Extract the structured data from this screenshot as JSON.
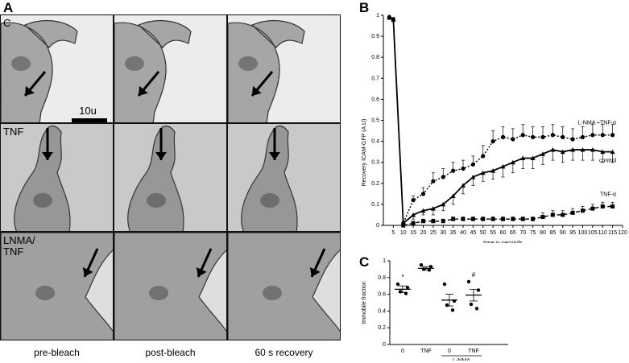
{
  "panels": {
    "a": "A",
    "b": "B",
    "c": "C"
  },
  "micrographs": {
    "rows": [
      "C",
      "TNF",
      "LNMA/\nTNF"
    ],
    "columns": [
      "pre-bleach",
      "post-bleach",
      "60 s recovery"
    ],
    "scale_bar": "10u",
    "colors": {
      "row1_bg": "#ececec",
      "row2_bg": "#c9c9c9",
      "row3_bg": "#dedede",
      "cell_stain": "#6e6e6e"
    },
    "icons": [
      "arrow-icon"
    ]
  },
  "chart_data": [
    {
      "type": "line",
      "xlabel": "time in seconds",
      "ylabel": "Recovery ICAM-GFP (A.U)",
      "x": [
        5,
        10,
        15,
        20,
        25,
        30,
        35,
        40,
        45,
        50,
        55,
        60,
        65,
        70,
        75,
        80,
        85,
        90,
        95,
        100,
        105,
        110,
        115,
        120
      ],
      "xlim": [
        0,
        120
      ],
      "ylim": [
        0,
        1
      ],
      "yticks": [
        "0",
        "0.1",
        "0.2",
        "0.3",
        "0.4",
        "0.5",
        "0.6",
        "0.7",
        "0.8",
        "0.9",
        "1"
      ],
      "grid": false,
      "series": [
        {
          "name": "L-NMA +TNF-α",
          "marker": "circle",
          "style": "dotted",
          "x": [
            3,
            5,
            10,
            15,
            20,
            25,
            30,
            35,
            40,
            45,
            50,
            55,
            60,
            65,
            70,
            75,
            80,
            85,
            90,
            95,
            100,
            105,
            110,
            115
          ],
          "values": [
            0.99,
            0.98,
            0.01,
            0.12,
            0.15,
            0.21,
            0.23,
            0.26,
            0.27,
            0.29,
            0.33,
            0.4,
            0.42,
            0.41,
            0.43,
            0.42,
            0.42,
            0.43,
            0.42,
            0.41,
            0.42,
            0.43,
            0.43,
            0.43
          ],
          "error": [
            0.01,
            0.01,
            0.01,
            0.02,
            0.03,
            0.04,
            0.04,
            0.04,
            0.04,
            0.04,
            0.05,
            0.05,
            0.05,
            0.05,
            0.05,
            0.05,
            0.05,
            0.05,
            0.05,
            0.05,
            0.05,
            0.05,
            0.05,
            0.05
          ]
        },
        {
          "name": "control",
          "marker": "triangle",
          "style": "solid",
          "x": [
            3,
            5,
            10,
            15,
            20,
            25,
            30,
            35,
            40,
            45,
            50,
            55,
            60,
            65,
            70,
            75,
            80,
            85,
            90,
            95,
            100,
            105,
            110,
            115
          ],
          "values": [
            0.99,
            0.98,
            0.01,
            0.05,
            0.07,
            0.08,
            0.1,
            0.14,
            0.19,
            0.23,
            0.25,
            0.26,
            0.28,
            0.3,
            0.32,
            0.32,
            0.34,
            0.36,
            0.35,
            0.36,
            0.36,
            0.36,
            0.35,
            0.35
          ],
          "error": [
            0.01,
            0.01,
            0.01,
            0.02,
            0.02,
            0.03,
            0.03,
            0.04,
            0.04,
            0.04,
            0.04,
            0.04,
            0.05,
            0.05,
            0.05,
            0.05,
            0.05,
            0.05,
            0.05,
            0.05,
            0.05,
            0.05,
            0.05,
            0.05
          ]
        },
        {
          "name": "TNF-α",
          "marker": "square",
          "style": "dashed",
          "x": [
            10,
            15,
            20,
            25,
            30,
            35,
            40,
            45,
            50,
            55,
            60,
            65,
            70,
            75,
            80,
            85,
            90,
            95,
            100,
            105,
            110,
            115
          ],
          "values": [
            0.0,
            0.01,
            0.02,
            0.02,
            0.02,
            0.03,
            0.03,
            0.03,
            0.03,
            0.03,
            0.03,
            0.03,
            0.03,
            0.03,
            0.04,
            0.05,
            0.05,
            0.06,
            0.07,
            0.08,
            0.09,
            0.09
          ],
          "error": [
            0.005,
            0.01,
            0.01,
            0.01,
            0.01,
            0.01,
            0.01,
            0.01,
            0.01,
            0.01,
            0.01,
            0.01,
            0.01,
            0.01,
            0.02,
            0.02,
            0.02,
            0.02,
            0.02,
            0.02,
            0.02,
            0.02
          ]
        }
      ]
    },
    {
      "type": "scatter",
      "ylabel": "Immobile fraction",
      "categories": [
        "0",
        "TNF",
        "0",
        "TNF"
      ],
      "group_label": "L-NMA",
      "ylim": [
        0,
        1
      ],
      "yticks": [
        "0",
        "0.2",
        "0.4",
        "0.6",
        "0.8",
        "1"
      ],
      "annotations": [
        "*",
        "",
        "",
        "#"
      ],
      "means": [
        0.66,
        0.91,
        0.53,
        0.59
      ],
      "sem": [
        0.04,
        0.02,
        0.07,
        0.07
      ],
      "points": [
        [
          0.72,
          0.68,
          0.63,
          0.61
        ],
        [
          0.95,
          0.93,
          0.9,
          0.89
        ],
        [
          0.72,
          0.52,
          0.47,
          0.41
        ],
        [
          0.75,
          0.65,
          0.48,
          0.43
        ]
      ]
    }
  ]
}
